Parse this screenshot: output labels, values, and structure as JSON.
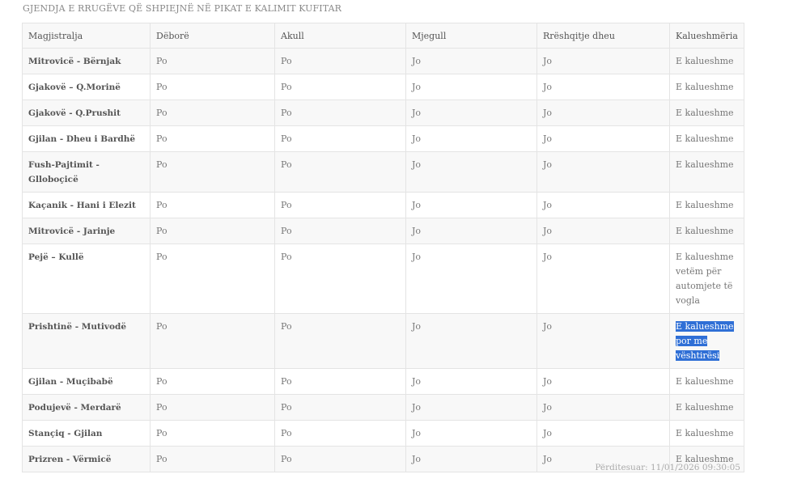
{
  "title": "GJENDJA E RRUGËVE QË SHPIEJNË NË PIKAT E KALIMIT KUFITAR",
  "columns": [
    "Magjistralja",
    "Dëborë",
    "Akull",
    "Mjegull",
    "Rrëshqitje dheu",
    "Kalueshmëria"
  ],
  "rows": [
    [
      "Mitrovicë - Bërnjak",
      "Po",
      "Po",
      "Jo",
      "Jo",
      "E kalueshme"
    ],
    [
      "Gjakovë – Q.Morinë",
      "Po",
      "Po",
      "Jo",
      "Jo",
      "E kalueshme"
    ],
    [
      "Gjakovë - Q.Prushit",
      "Po",
      "Po",
      "Jo",
      "Jo",
      "E kalueshme"
    ],
    [
      "Gjilan - Dheu i Bardhë",
      "Po",
      "Po",
      "Jo",
      "Jo",
      "E kalueshme"
    ],
    [
      "Fush-Pajtimit - Glloboçicë",
      "Po",
      "Po",
      "Jo",
      "Jo",
      "E kalueshme"
    ],
    [
      "Kaçanik - Hani i Elezit",
      "Po",
      "Po",
      "Jo",
      "Jo",
      "E kalueshme"
    ],
    [
      "Mitrovicë - Jarinje",
      "Po",
      "Po",
      "Jo",
      "Jo",
      "E kalueshme"
    ],
    [
      "Pejë – Kullë",
      "Po",
      "Po",
      "Jo",
      "Jo",
      "E kalueshme vetëm për automjete të vogla"
    ],
    [
      "Prishtinë - Mutivodë",
      "Po",
      "Po",
      "Jo",
      "Jo",
      "E kalueshme por me vështirësi"
    ],
    [
      "Gjilan - Muçibabë",
      "Po",
      "Po",
      "Jo",
      "Jo",
      "E kalueshme"
    ],
    [
      "Podujevë - Merdarë",
      "Po",
      "Po",
      "Jo",
      "Jo",
      "E kalueshme"
    ],
    [
      "Stançiq - Gjilan",
      "Po",
      "Po",
      "Jo",
      "Jo",
      "E kalueshme"
    ],
    [
      "Prizren - Vërmicë",
      "Po",
      "Po",
      "Jo",
      "Jo",
      "E kalueshme"
    ]
  ],
  "selected_cell": {
    "row": 8,
    "col": 5
  },
  "selection_color": "#2f6fd6",
  "updated": "Përditesuar: 11/01/2026 09:30:05"
}
